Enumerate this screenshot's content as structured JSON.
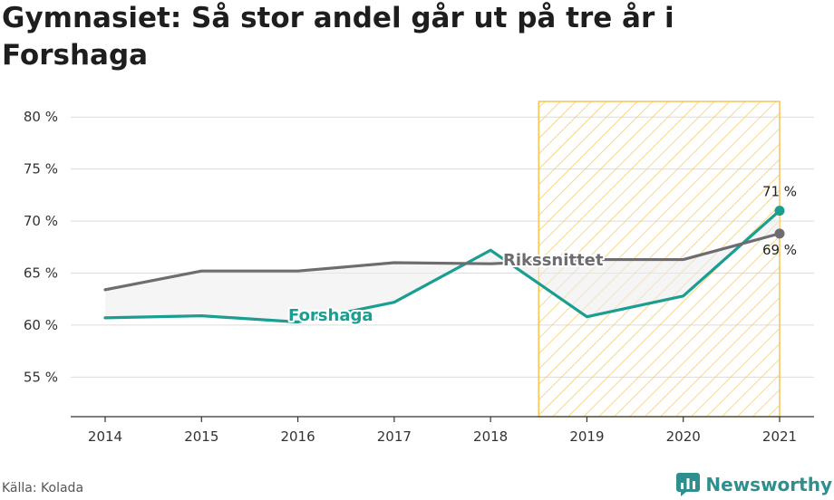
{
  "title": "Gymnasiet: Så stor andel går ut på tre år i Forshaga",
  "source": "Källa: Kolada",
  "brand": {
    "name": "Newsworthy"
  },
  "colors": {
    "forshaga": "#1a9e91",
    "riket": "#6e6c70",
    "highlight": "#f6c453",
    "fill": "#ededee"
  },
  "chart_data": {
    "type": "line",
    "x": [
      "2014",
      "2015",
      "2016",
      "2017",
      "2018",
      "2019",
      "2020",
      "2021"
    ],
    "y_ticks": [
      "55 %",
      "60 %",
      "65 %",
      "70 %",
      "75 %",
      "80 %"
    ],
    "y_tick_values": [
      55,
      60,
      65,
      70,
      75,
      80
    ],
    "ylim": [
      51.2,
      81.5
    ],
    "highlight_range": [
      "2018",
      "2021"
    ],
    "grid": true,
    "series": [
      {
        "name": "Forshaga",
        "values": [
          60.7,
          60.9,
          60.3,
          62.2,
          67.2,
          60.8,
          62.8,
          71.0
        ],
        "end_label": "71 %"
      },
      {
        "name": "Rikssnittet",
        "values": [
          63.4,
          65.2,
          65.2,
          66.0,
          65.9,
          66.3,
          66.3,
          68.8
        ],
        "end_label": "69 %"
      }
    ]
  }
}
